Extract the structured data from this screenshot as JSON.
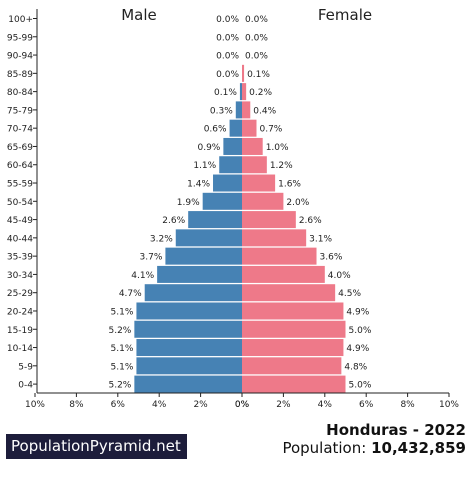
{
  "chart_data": {
    "type": "bar",
    "orientation": "horizontal-pyramid",
    "title_left": "Male",
    "title_right": "Female",
    "categories": [
      "100+",
      "95-99",
      "90-94",
      "85-89",
      "80-84",
      "75-79",
      "70-74",
      "65-69",
      "60-64",
      "55-59",
      "50-54",
      "45-49",
      "40-44",
      "35-39",
      "30-34",
      "25-29",
      "20-24",
      "15-19",
      "10-14",
      "5-9",
      "0-4"
    ],
    "series": [
      {
        "name": "Male",
        "values": [
          0.0,
          0.0,
          0.0,
          0.0,
          0.1,
          0.3,
          0.6,
          0.9,
          1.1,
          1.4,
          1.9,
          2.6,
          3.2,
          3.7,
          4.1,
          4.7,
          5.1,
          5.2,
          5.1,
          5.1,
          5.2
        ],
        "labels": [
          "0.0%",
          "0.0%",
          "0.0%",
          "0.0%",
          "0.1%",
          "0.3%",
          "0.6%",
          "0.9%",
          "1.1%",
          "1.4%",
          "1.9%",
          "2.6%",
          "3.2%",
          "3.7%",
          "4.1%",
          "4.7%",
          "5.1%",
          "5.2%",
          "5.1%",
          "5.1%",
          "5.2%"
        ],
        "color": "#4682b4"
      },
      {
        "name": "Female",
        "values": [
          0.0,
          0.0,
          0.0,
          0.1,
          0.2,
          0.4,
          0.7,
          1.0,
          1.2,
          1.6,
          2.0,
          2.6,
          3.1,
          3.6,
          4.0,
          4.5,
          4.9,
          5.0,
          4.9,
          4.8,
          5.0
        ],
        "labels": [
          "0.0%",
          "0.0%",
          "0.0%",
          "0.1%",
          "0.2%",
          "0.4%",
          "0.7%",
          "1.0%",
          "1.2%",
          "1.6%",
          "2.0%",
          "2.6%",
          "3.1%",
          "3.6%",
          "4.0%",
          "4.5%",
          "4.9%",
          "5.0%",
          "4.9%",
          "4.8%",
          "5.0%"
        ],
        "color": "#ee7989"
      }
    ],
    "xlim": [
      0,
      10
    ],
    "x_ticks_left": [
      "10%",
      "8%",
      "6%",
      "4%",
      "2%",
      "0%"
    ],
    "x_ticks_right": [
      "0%",
      "2%",
      "4%",
      "6%",
      "8%",
      "10%"
    ],
    "x_tick_values": [
      10,
      8,
      6,
      4,
      2,
      0
    ],
    "grid": false
  },
  "brand": "PopulationPyramid.net",
  "country_year": "Honduras - 2022",
  "population_label": "Population:",
  "population_value": "10,432,859"
}
